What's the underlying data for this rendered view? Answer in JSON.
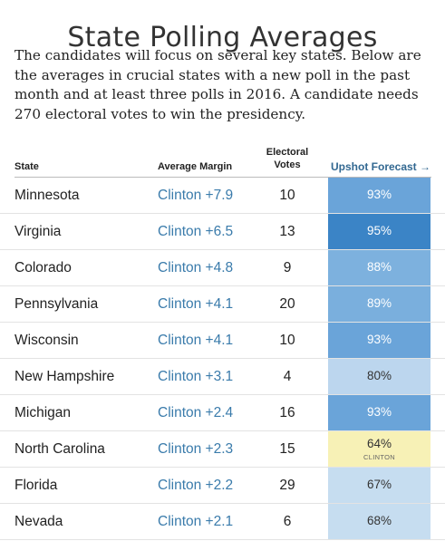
{
  "title": "State Polling Averages",
  "intro": "The candidates will focus on several key states. Below are the averages in crucial states with a new poll in the past month and at least three polls in 2016. A candidate needs 270 electoral votes to win the presidency.",
  "headers": {
    "state": "State",
    "margin": "Average Margin",
    "ev_line1": "Electoral",
    "ev_line2": "Votes",
    "forecast": "Upshot Forecast →"
  },
  "rows": [
    {
      "state": "Minnesota",
      "margin": "Clinton +7.9",
      "ev": "10",
      "forecast": "93%",
      "color": "#6aa4d9",
      "text_color": "#ffffff"
    },
    {
      "state": "Virginia",
      "margin": "Clinton +6.5",
      "ev": "13",
      "forecast": "95%",
      "color": "#3b84c6",
      "text_color": "#ffffff"
    },
    {
      "state": "Colorado",
      "margin": "Clinton +4.8",
      "ev": "9",
      "forecast": "88%",
      "color": "#7db1de",
      "text_color": "#ffffff"
    },
    {
      "state": "Pennsylvania",
      "margin": "Clinton +4.1",
      "ev": "20",
      "forecast": "89%",
      "color": "#7aafdd",
      "text_color": "#ffffff"
    },
    {
      "state": "Wisconsin",
      "margin": "Clinton +4.1",
      "ev": "10",
      "forecast": "93%",
      "color": "#6aa4d9",
      "text_color": "#ffffff"
    },
    {
      "state": "New Hampshire",
      "margin": "Clinton +3.1",
      "ev": "4",
      "forecast": "80%",
      "color": "#bcd6ee",
      "text_color": "#333333"
    },
    {
      "state": "Michigan",
      "margin": "Clinton +2.4",
      "ev": "16",
      "forecast": "93%",
      "color": "#6aa4d9",
      "text_color": "#ffffff"
    },
    {
      "state": "North Carolina",
      "margin": "Clinton +2.3",
      "ev": "15",
      "forecast": "64%",
      "sub": "CLINTON",
      "color": "#f7f1b6",
      "text_color": "#333333"
    },
    {
      "state": "Florida",
      "margin": "Clinton +2.2",
      "ev": "29",
      "forecast": "67%",
      "color": "#c6ddf0",
      "text_color": "#333333"
    },
    {
      "state": "Nevada",
      "margin": "Clinton +2.1",
      "ev": "6",
      "forecast": "68%",
      "color": "#c6ddf0",
      "text_color": "#333333"
    }
  ]
}
